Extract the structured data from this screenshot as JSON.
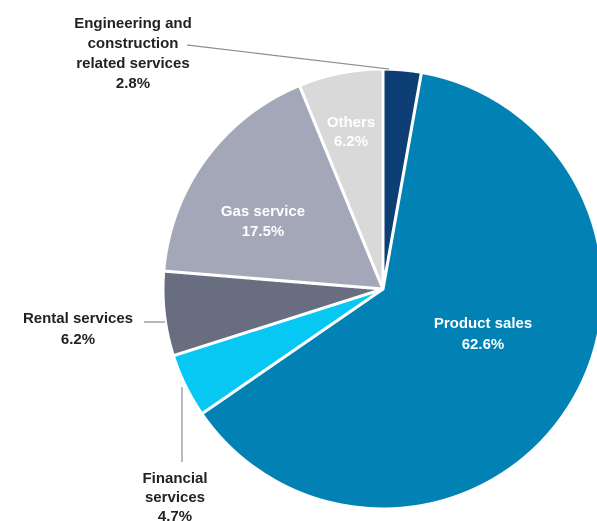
{
  "chart_data": {
    "type": "pie",
    "start_angle_deg": 0,
    "direction": "clockwise",
    "slices": [
      {
        "label_lines": [
          "Engineering and",
          "construction",
          "related services"
        ],
        "value_text": "2.8%",
        "value": 2.8,
        "color": "#0d3f74",
        "label_color": "#222222"
      },
      {
        "label_lines": [
          "Product sales"
        ],
        "value_text": "62.6%",
        "value": 62.6,
        "color": "#0282b4",
        "label_color": "#ffffff"
      },
      {
        "label_lines": [
          "Financial",
          "services"
        ],
        "value_text": "4.7%",
        "value": 4.7,
        "color": "#06c8f3",
        "label_color": "#222222"
      },
      {
        "label_lines": [
          "Rental services"
        ],
        "value_text": "6.2%",
        "value": 6.2,
        "color": "#686e80",
        "label_color": "#222222"
      },
      {
        "label_lines": [
          "Gas service"
        ],
        "value_text": "17.5%",
        "value": 17.5,
        "color": "#a4a7b7",
        "label_color": "#ffffff"
      },
      {
        "label_lines": [
          "Others"
        ],
        "value_text": "6.2%",
        "value": 6.2,
        "color": "#d9d9d9",
        "label_color": "#ffffff"
      }
    ],
    "leader_color": "#8c8c8c",
    "edge_color": "#ffffff"
  }
}
